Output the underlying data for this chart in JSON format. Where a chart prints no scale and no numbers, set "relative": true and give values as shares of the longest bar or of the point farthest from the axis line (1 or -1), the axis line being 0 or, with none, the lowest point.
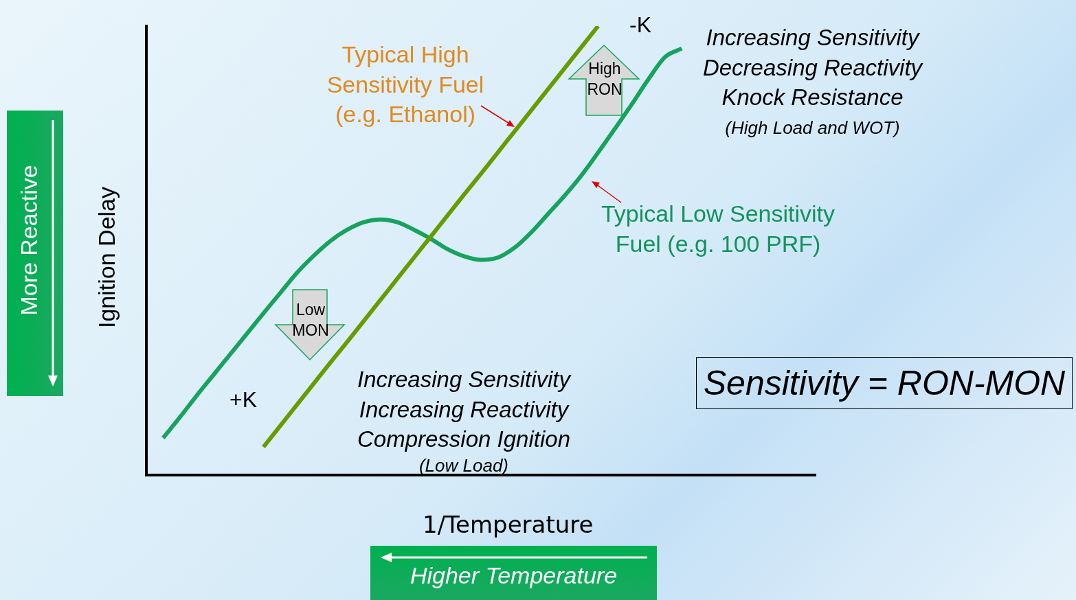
{
  "chart_data": {
    "type": "line",
    "relative": true,
    "xlabel": "1/Temperature",
    "ylabel": "Ignition Delay",
    "categories": [
      null,
      null,
      null,
      null,
      null,
      null,
      null,
      null,
      null,
      null,
      null,
      null,
      null,
      null,
      null,
      null,
      null,
      null,
      null,
      null,
      null,
      null,
      null,
      null,
      null,
      null,
      null,
      null,
      null,
      null,
      null,
      null,
      null,
      null,
      null,
      null,
      null,
      null,
      null,
      null,
      null
    ],
    "series": [
      {
        "name": "Typical High Sensitivity Fuel (e.g. Ethanol)",
        "color": "#669c00",
        "values": [
          null,
          null,
          null,
          null,
          null,
          null,
          null,
          0.062,
          0.109,
          0.156,
          0.203,
          0.25,
          0.296,
          0.343,
          0.39,
          0.437,
          0.484,
          0.531,
          0.578,
          0.625,
          0.671,
          0.718,
          0.765,
          0.812,
          0.859,
          0.906,
          0.953,
          1.0,
          null,
          null,
          null,
          null,
          null,
          null,
          null,
          null,
          null,
          null,
          null,
          null,
          null
        ]
      },
      {
        "name": "Typical Low Sensitivity Fuel (e.g. 100 PRF)",
        "color": "#17a35e",
        "values": [
          null,
          0.082,
          0.128,
          0.176,
          0.222,
          0.268,
          0.314,
          0.36,
          0.405,
          0.45,
          0.488,
          0.521,
          0.546,
          0.563,
          0.569,
          0.563,
          0.546,
          0.526,
          0.503,
          0.487,
          0.479,
          0.484,
          0.506,
          0.54,
          0.581,
          0.622,
          0.667,
          0.718,
          0.771,
          0.825,
          0.881,
          0.931,
          0.95,
          null,
          null,
          null,
          null,
          null,
          null,
          null,
          null
        ]
      }
    ],
    "annotations": [
      "-K",
      "+K",
      "High RON",
      "Low MON",
      "Increasing Sensitivity Decreasing Reactivity Knock Resistance",
      "(High Load and WOT)",
      "Increasing Sensitivity Increasing Reactivity Compression Ignition",
      "(Low Load)",
      "Sensitivity = RON-MON",
      "More Reactive",
      "Higher Temperature"
    ]
  }
}
